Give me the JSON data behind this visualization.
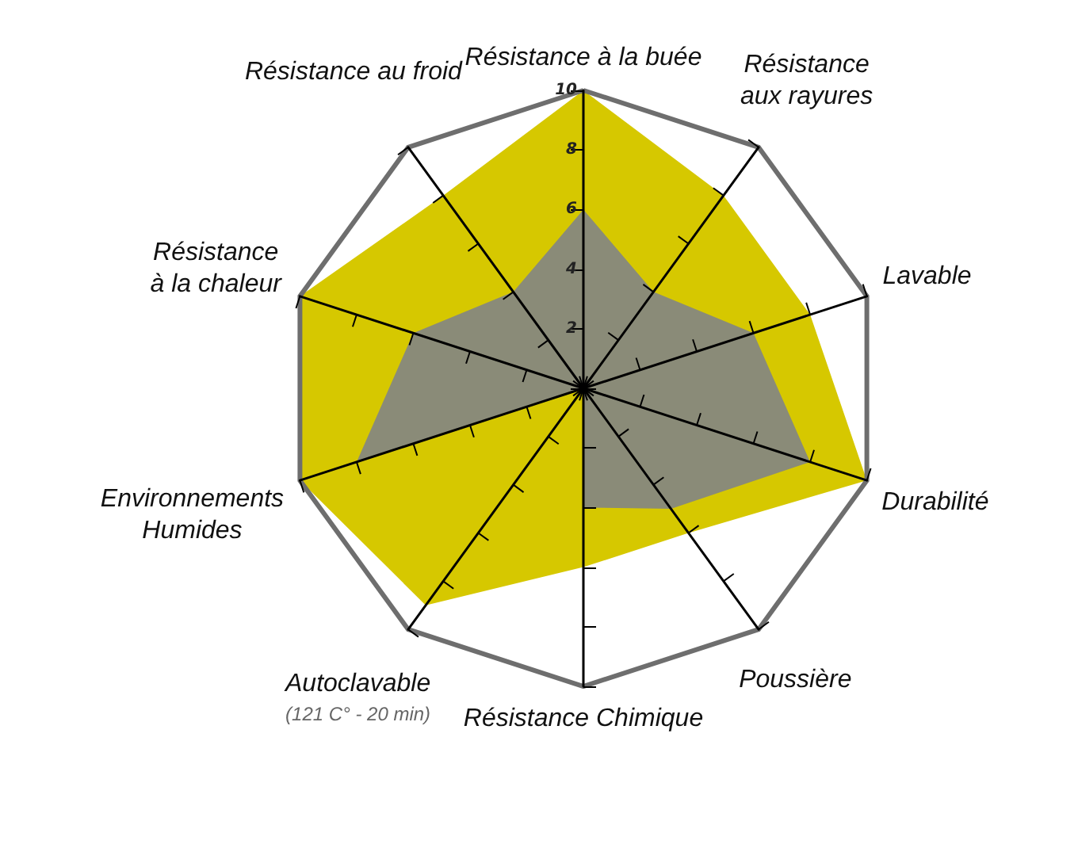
{
  "chart_data": {
    "type": "radar",
    "categories": [
      "Résistance à la buée",
      "Résistance\naux rayures",
      "Lavable",
      "Durabilité",
      "Poussière",
      "Résistance Chimique",
      "Autoclavable\n(121 C° - 20 min)",
      "Environnements\nHumides",
      "Résistance\nà la chaleur",
      "Résistance au froid"
    ],
    "ylim": [
      0,
      10
    ],
    "yticks": [
      2,
      4,
      6,
      8,
      10
    ],
    "series": [
      {
        "color": "#d6c800",
        "values": [
          10,
          8,
          8,
          10,
          6,
          6,
          9,
          10,
          10,
          8
        ]
      },
      {
        "color": "#8a8b78",
        "values": [
          6,
          4,
          6,
          8,
          5,
          4,
          0,
          8,
          6,
          4
        ]
      }
    ]
  }
}
